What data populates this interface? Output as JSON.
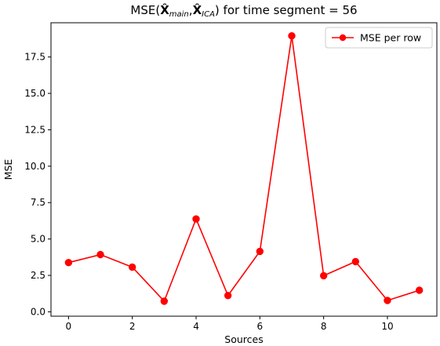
{
  "chart_data": {
    "type": "line",
    "title_parts": [
      {
        "text": "MSE(",
        "style": "normal"
      },
      {
        "text": "X̂",
        "style": "bold"
      },
      {
        "text": "main",
        "style": "sub"
      },
      {
        "text": ",",
        "style": "normal"
      },
      {
        "text": "X̂",
        "style": "bold"
      },
      {
        "text": "ICA",
        "style": "sub"
      },
      {
        "text": ") for time segment = 56",
        "style": "normal"
      }
    ],
    "xlabel": "Sources",
    "ylabel": "MSE",
    "xlim": [
      -0.55,
      11.55
    ],
    "ylim": [
      -0.3,
      19.85
    ],
    "xticks": [
      0,
      2,
      4,
      6,
      8,
      10
    ],
    "yticks": [
      0.0,
      2.5,
      5.0,
      7.5,
      10.0,
      12.5,
      15.0,
      17.5
    ],
    "ytick_labels": [
      "0.0",
      "2.5",
      "5.0",
      "7.5",
      "10.0",
      "12.5",
      "15.0",
      "17.5"
    ],
    "legend_position": "upper right",
    "series": [
      {
        "name": "MSE per row",
        "color": "#ff0000",
        "marker": "circle",
        "x": [
          0,
          1,
          2,
          3,
          4,
          5,
          6,
          7,
          8,
          9,
          10,
          11
        ],
        "y": [
          3.38,
          3.93,
          3.07,
          0.73,
          6.38,
          1.12,
          4.15,
          18.95,
          2.48,
          3.45,
          0.78,
          1.48
        ]
      }
    ]
  }
}
